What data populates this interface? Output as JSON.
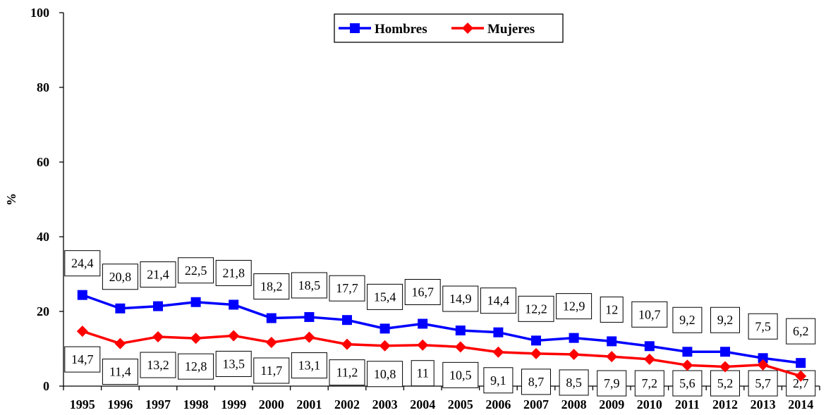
{
  "chart_data": {
    "type": "line",
    "ylabel": "%",
    "ylim": [
      0,
      100
    ],
    "yticks": [
      "0",
      "20",
      "40",
      "60",
      "80",
      "100"
    ],
    "categories": [
      "1995",
      "1996",
      "1997",
      "1998",
      "1999",
      "2000",
      "2001",
      "2002",
      "2003",
      "2004",
      "2005",
      "2006",
      "2007",
      "2008",
      "2009",
      "2010",
      "2011",
      "2012",
      "2013",
      "2014"
    ],
    "legend_position": "top-center",
    "grid": false,
    "series": [
      {
        "name": "Hombres",
        "color": "#0000ff",
        "marker": "square",
        "values": [
          24.4,
          20.8,
          21.4,
          22.5,
          21.8,
          18.2,
          18.5,
          17.7,
          15.4,
          16.7,
          14.9,
          14.4,
          12.2,
          12.9,
          12.0,
          10.7,
          9.2,
          9.2,
          7.5,
          6.2
        ],
        "labels": [
          "24,4",
          "20,8",
          "21,4",
          "22,5",
          "21,8",
          "18,2",
          "18,5",
          "17,7",
          "15,4",
          "16,7",
          "14,9",
          "14,4",
          "12,2",
          "12,9",
          "12",
          "10,7",
          "9,2",
          "9,2",
          "7,5",
          "6,2"
        ]
      },
      {
        "name": "Mujeres",
        "color": "#ff0000",
        "marker": "diamond",
        "values": [
          14.7,
          11.4,
          13.2,
          12.8,
          13.5,
          11.7,
          13.1,
          11.2,
          10.8,
          11.0,
          10.5,
          9.1,
          8.7,
          8.5,
          7.9,
          7.2,
          5.6,
          5.2,
          5.7,
          2.7
        ],
        "labels": [
          "14,7",
          "11,4",
          "13,2",
          "12,8",
          "13,5",
          "11,7",
          "13,1",
          "11,2",
          "10,8",
          "11",
          "10,5",
          "9,1",
          "8,7",
          "8,5",
          "7,9",
          "7,2",
          "5,6",
          "5,2",
          "5,7",
          "2,7"
        ]
      }
    ]
  }
}
